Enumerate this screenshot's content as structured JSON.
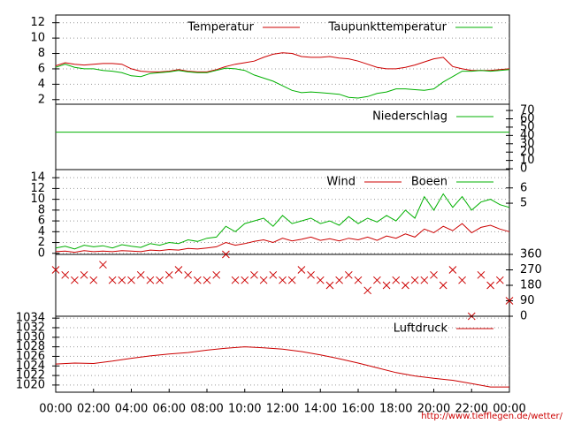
{
  "chart_data": [
    {
      "type": "line",
      "x": [
        0,
        0.5,
        1,
        1.5,
        2,
        2.5,
        3,
        3.5,
        4,
        4.5,
        5,
        5.5,
        6,
        6.5,
        7,
        7.5,
        8,
        8.5,
        9,
        9.5,
        10,
        10.5,
        11,
        11.5,
        12,
        12.5,
        13,
        13.5,
        14,
        14.5,
        15,
        15.5,
        16,
        16.5,
        17,
        17.5,
        18,
        18.5,
        19,
        19.5,
        20,
        20.5,
        21,
        21.5,
        22,
        22.5,
        23,
        23.5,
        24
      ],
      "xlim": [
        0,
        24
      ],
      "ylim": [
        1.4,
        13
      ],
      "yticks": [
        2,
        4,
        6,
        8,
        10,
        12
      ],
      "grid": true,
      "series": [
        {
          "name": "Temperatur",
          "color": "#cc0000",
          "values": [
            6.4,
            6.8,
            6.6,
            6.5,
            6.6,
            6.7,
            6.7,
            6.6,
            6.0,
            5.7,
            5.6,
            5.6,
            5.7,
            5.9,
            5.7,
            5.6,
            5.6,
            5.9,
            6.3,
            6.6,
            6.8,
            7.0,
            7.5,
            7.9,
            8.1,
            8.0,
            7.6,
            7.5,
            7.5,
            7.6,
            7.4,
            7.3,
            7.0,
            6.6,
            6.2,
            6.0,
            6.0,
            6.2,
            6.5,
            6.9,
            7.3,
            7.5,
            6.3,
            6.0,
            5.8,
            5.8,
            5.8,
            5.9,
            6.0
          ]
        },
        {
          "name": "Taupunkttemperatur",
          "color": "#00b000",
          "values": [
            6.2,
            6.6,
            6.2,
            6.0,
            6.0,
            5.8,
            5.7,
            5.5,
            5.1,
            5.0,
            5.4,
            5.5,
            5.6,
            5.8,
            5.6,
            5.5,
            5.5,
            5.8,
            6.1,
            6.0,
            5.8,
            5.2,
            4.8,
            4.4,
            3.8,
            3.2,
            2.9,
            3.0,
            2.9,
            2.8,
            2.7,
            2.3,
            2.2,
            2.4,
            2.8,
            3.0,
            3.4,
            3.4,
            3.3,
            3.2,
            3.4,
            4.3,
            5.0,
            5.7,
            5.7,
            5.8,
            5.7,
            5.8,
            5.9
          ]
        }
      ]
    },
    {
      "type": "line",
      "x": [
        0,
        24
      ],
      "xlim": [
        0,
        24
      ],
      "ylim": [
        -1,
        77.5
      ],
      "yticks": [
        0,
        10,
        20,
        30,
        40,
        50,
        60,
        70
      ],
      "grid": false,
      "series": [
        {
          "name": "Niederschlag",
          "color": "#00b000",
          "values": [
            44,
            44
          ]
        }
      ]
    },
    {
      "type": "line",
      "x": [
        0,
        0.5,
        1,
        1.5,
        2,
        2.5,
        3,
        3.5,
        4,
        4.5,
        5,
        5.5,
        6,
        6.5,
        7,
        7.5,
        8,
        8.5,
        9,
        9.5,
        10,
        10.5,
        11,
        11.5,
        12,
        12.5,
        13,
        13.5,
        14,
        14.5,
        15,
        15.5,
        16,
        16.5,
        17,
        17.5,
        18,
        18.5,
        19,
        19.5,
        20,
        20.5,
        21,
        21.5,
        22,
        22.5,
        23,
        23.5,
        24
      ],
      "xlim": [
        0,
        24
      ],
      "ylim": [
        -0.2,
        15.5
      ],
      "yticks": [
        0,
        2,
        4,
        6,
        8,
        10,
        12,
        14
      ],
      "y2lim": [
        1.65,
        7.2
      ],
      "y2ticks": [
        5,
        6
      ],
      "grid": true,
      "series": [
        {
          "name": "Wind",
          "color": "#cc0000",
          "values": [
            0.3,
            0.4,
            0.2,
            0.5,
            0.3,
            0.4,
            0.3,
            0.5,
            0.4,
            0.3,
            0.6,
            0.5,
            0.7,
            0.6,
            0.9,
            0.8,
            1.0,
            1.2,
            2.0,
            1.5,
            1.8,
            2.2,
            2.5,
            2.0,
            2.8,
            2.3,
            2.6,
            3.0,
            2.4,
            2.7,
            2.3,
            2.8,
            2.5,
            3.0,
            2.4,
            3.2,
            2.8,
            3.6,
            3.0,
            4.5,
            3.8,
            5.0,
            4.2,
            5.5,
            3.8,
            4.8,
            5.2,
            4.5,
            4.0
          ]
        },
        {
          "name": "Boeen",
          "color": "#00b000",
          "values": [
            1.0,
            1.3,
            0.8,
            1.5,
            1.2,
            1.4,
            1.0,
            1.6,
            1.3,
            1.1,
            1.8,
            1.5,
            2.0,
            1.8,
            2.5,
            2.2,
            2.8,
            3.0,
            5.0,
            4.0,
            5.5,
            6.0,
            6.5,
            5.0,
            7.0,
            5.5,
            6.0,
            6.5,
            5.5,
            6.0,
            5.2,
            6.8,
            5.5,
            6.5,
            5.8,
            7.0,
            6.0,
            8.0,
            6.5,
            10.5,
            8.0,
            11.0,
            8.5,
            10.5,
            8.0,
            9.5,
            10.0,
            9.0,
            8.5
          ]
        }
      ]
    },
    {
      "type": "scatter",
      "x": [
        0,
        0.5,
        1,
        1.5,
        2,
        2.5,
        3,
        3.5,
        4,
        4.5,
        5,
        5.5,
        6,
        6.5,
        7,
        7.5,
        8,
        8.5,
        9,
        9.5,
        10,
        10.5,
        11,
        11.5,
        12,
        12.5,
        13,
        13.5,
        14,
        14.5,
        15,
        15.5,
        16,
        16.5,
        17,
        17.5,
        18,
        18.5,
        19,
        19.5,
        20,
        20.5,
        21,
        21.5,
        22,
        22.5,
        23,
        23.5,
        24
      ],
      "xlim": [
        0,
        24
      ],
      "ylim": [
        0,
        360
      ],
      "yticks": [
        0,
        90,
        180,
        270,
        360
      ],
      "color": "#cc0000",
      "values": [
        270,
        240,
        210,
        240,
        210,
        300,
        210,
        210,
        210,
        240,
        210,
        210,
        240,
        270,
        240,
        210,
        210,
        240,
        360,
        210,
        210,
        240,
        210,
        240,
        210,
        210,
        270,
        240,
        210,
        180,
        210,
        240,
        210,
        150,
        210,
        180,
        210,
        180,
        210,
        210,
        240,
        180,
        270,
        210,
        0,
        240,
        180,
        210,
        90
      ]
    },
    {
      "type": "line",
      "x": [
        0,
        1,
        2,
        3,
        4,
        5,
        6,
        7,
        8,
        9,
        10,
        11,
        12,
        13,
        14,
        15,
        16,
        17,
        18,
        19,
        20,
        21,
        22,
        23,
        24
      ],
      "xlim": [
        0,
        24
      ],
      "ylim": [
        1018.5,
        1034.4
      ],
      "yticks": [
        1020,
        1022,
        1024,
        1026,
        1028,
        1030,
        1032,
        1034
      ],
      "grid": true,
      "xticks": [
        {
          "value": 0,
          "label": "00:00"
        },
        {
          "value": 2,
          "label": "02:00"
        },
        {
          "value": 4,
          "label": "04:00"
        },
        {
          "value": 6,
          "label": "06:00"
        },
        {
          "value": 8,
          "label": "08:00"
        },
        {
          "value": 10,
          "label": "10:00"
        },
        {
          "value": 12,
          "label": "12:00"
        },
        {
          "value": 14,
          "label": "14:00"
        },
        {
          "value": 16,
          "label": "16:00"
        },
        {
          "value": 18,
          "label": "18:00"
        },
        {
          "value": 20,
          "label": "20:00"
        },
        {
          "value": 22,
          "label": "22:00"
        },
        {
          "value": 24,
          "label": "00:00"
        }
      ],
      "series": [
        {
          "name": "Luftdruck",
          "color": "#cc0000",
          "values": [
            1024.4,
            1024.6,
            1024.5,
            1025.0,
            1025.6,
            1026.1,
            1026.5,
            1026.8,
            1027.3,
            1027.7,
            1028.0,
            1027.8,
            1027.5,
            1027.0,
            1026.3,
            1025.5,
            1024.6,
            1023.6,
            1022.6,
            1021.9,
            1021.4,
            1021.0,
            1020.3,
            1019.6,
            1019.6
          ]
        }
      ]
    }
  ],
  "footer": "http://www.tiefflegen.de/wetter/"
}
